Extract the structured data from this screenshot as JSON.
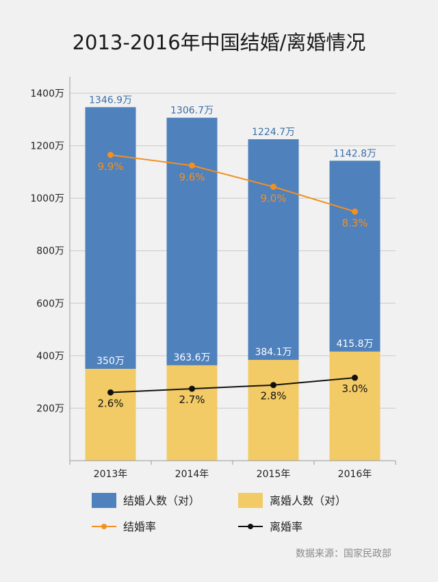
{
  "chart_data": {
    "type": "bar",
    "title": "2013-2016年中国结婚/离婚情况",
    "categories": [
      "2013年",
      "2014年",
      "2015年",
      "2016年"
    ],
    "ylim": [
      0,
      1400
    ],
    "yticks": [
      {
        "value": 200,
        "label": "200万"
      },
      {
        "value": 400,
        "label": "400万"
      },
      {
        "value": 600,
        "label": "600万"
      },
      {
        "value": 800,
        "label": "800万"
      },
      {
        "value": 1000,
        "label": "1000万"
      },
      {
        "value": 1200,
        "label": "1200万"
      },
      {
        "value": 1400,
        "label": "1400万"
      }
    ],
    "grid": true,
    "series": [
      {
        "name": "结婚人数（对）",
        "kind": "bar",
        "color": "#4f81bd",
        "values": [
          1346.9,
          1306.7,
          1224.7,
          1142.8
        ],
        "labels": [
          "1346.9万",
          "1306.7万",
          "1224.7万",
          "1142.8万"
        ]
      },
      {
        "name": "离婚人数（对）",
        "kind": "bar",
        "color": "#f2ca66",
        "values": [
          350,
          363.6,
          384.1,
          415.8
        ],
        "labels": [
          "350万",
          "363.6万",
          "384.1万",
          "415.8万"
        ]
      },
      {
        "name": "结婚率",
        "kind": "line",
        "color": "#f3901f",
        "values": [
          9.9,
          9.6,
          9.0,
          8.3
        ],
        "labels": [
          "9.9%",
          "9.6%",
          "9.0%",
          "8.3%"
        ]
      },
      {
        "name": "离婚率",
        "kind": "line",
        "color": "#111111",
        "values": [
          2.6,
          2.7,
          2.8,
          3.0
        ],
        "labels": [
          "2.6%",
          "2.7%",
          "2.8%",
          "3.0%"
        ]
      }
    ],
    "legend_position": "bottom",
    "source": "数据来源：国家民政部"
  }
}
